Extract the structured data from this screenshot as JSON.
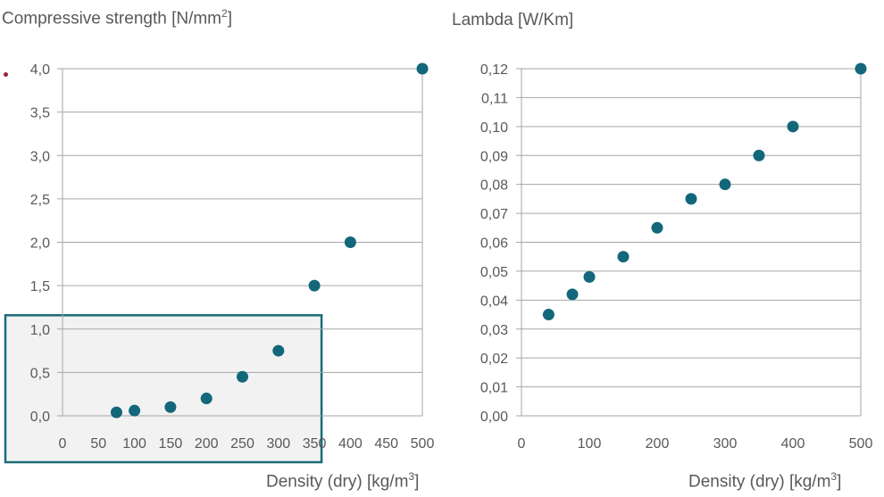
{
  "chart_data": [
    {
      "type": "scatter",
      "title": "Compressive strength [N/mm",
      "title_sup": "2",
      "title_end": "]",
      "xlabel": "Density (dry) [kg/m",
      "xlabel_sup": "3",
      "xlabel_end": "]",
      "xlim": [
        0,
        500
      ],
      "ylim": [
        0,
        4
      ],
      "x_ticks": [
        0,
        50,
        100,
        150,
        200,
        250,
        300,
        350,
        400,
        450,
        500
      ],
      "y_ticks": [
        "0,0",
        "0,5",
        "1,0",
        "1,5",
        "2,0",
        "2,5",
        "3,0",
        "3,5",
        "4,0"
      ],
      "grid": true,
      "highlight_box": {
        "x_range": [
          0,
          350
        ],
        "y_range": [
          0,
          1.2
        ],
        "color": "#1a6b78"
      },
      "marker_color": "#12677a",
      "points": [
        {
          "x": 75,
          "y": 0.04
        },
        {
          "x": 100,
          "y": 0.06
        },
        {
          "x": 150,
          "y": 0.1
        },
        {
          "x": 200,
          "y": 0.2
        },
        {
          "x": 250,
          "y": 0.45
        },
        {
          "x": 300,
          "y": 0.75
        },
        {
          "x": 350,
          "y": 1.5
        },
        {
          "x": 400,
          "y": 2.0
        },
        {
          "x": 500,
          "y": 4.0
        }
      ]
    },
    {
      "type": "scatter",
      "title": "Lambda [W/Km]",
      "xlabel": "Density (dry) [kg/m",
      "xlabel_sup": "3",
      "xlabel_end": "]",
      "xlim": [
        0,
        500
      ],
      "ylim": [
        0,
        0.12
      ],
      "x_ticks": [
        0,
        100,
        200,
        300,
        400,
        500
      ],
      "y_ticks": [
        "0,00",
        "0,01",
        "0,02",
        "0,03",
        "0,04",
        "0,05",
        "0,06",
        "0,07",
        "0,08",
        "0,09",
        "0,10",
        "0,11",
        "0,12"
      ],
      "grid": true,
      "marker_color": "#12677a",
      "points": [
        {
          "x": 40,
          "y": 0.035
        },
        {
          "x": 75,
          "y": 0.042
        },
        {
          "x": 100,
          "y": 0.048
        },
        {
          "x": 150,
          "y": 0.055
        },
        {
          "x": 200,
          "y": 0.065
        },
        {
          "x": 250,
          "y": 0.075
        },
        {
          "x": 300,
          "y": 0.08
        },
        {
          "x": 350,
          "y": 0.09
        },
        {
          "x": 400,
          "y": 0.1
        },
        {
          "x": 500,
          "y": 0.12
        }
      ]
    }
  ]
}
